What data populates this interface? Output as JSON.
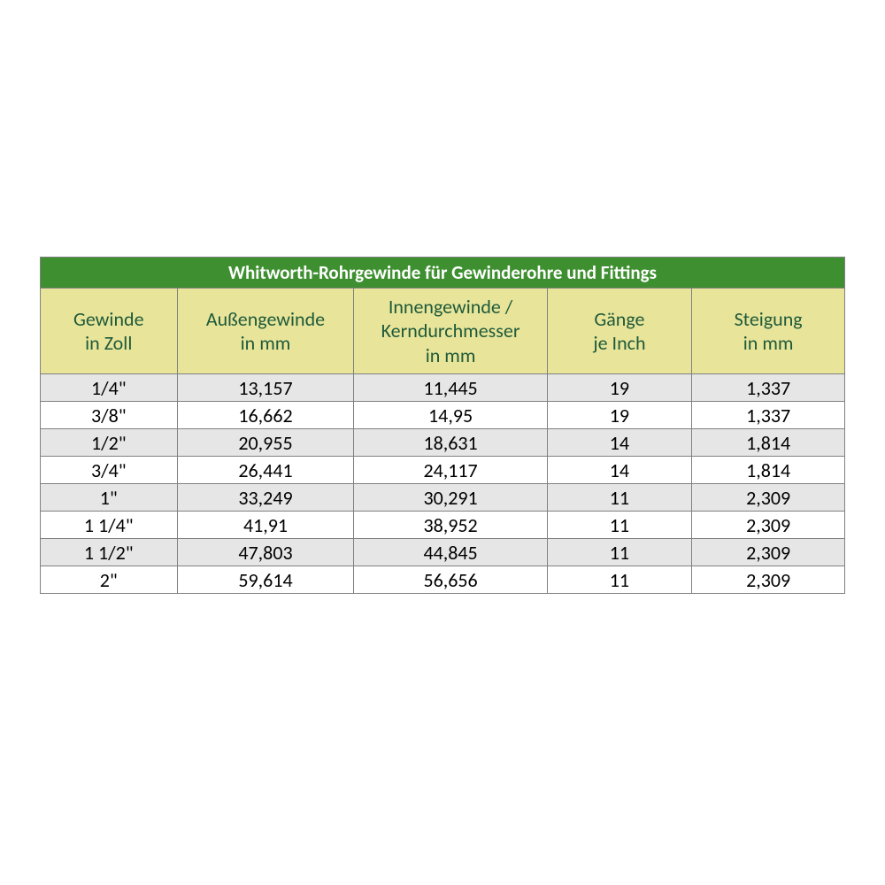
{
  "table": {
    "title": "Whitworth-Rohrgewinde für Gewinderohre und Fittings",
    "title_bg": "#3d8f2f",
    "title_color": "#ffffff",
    "header_bg": "#e8e59a",
    "header_color": "#1f5a3a",
    "row_odd_bg": "#e6e6e6",
    "row_even_bg": "#ffffff",
    "border_color": "#808080",
    "font_family": "Calibri, Arial, sans-serif",
    "title_fontsize": 21,
    "header_fontsize": 22,
    "data_fontsize": 22,
    "col_widths_pct": [
      17,
      22,
      24,
      18,
      19
    ],
    "columns": [
      {
        "line1": "Gewinde",
        "line2": "in Zoll"
      },
      {
        "line1": "Außengewinde",
        "line2": "in mm"
      },
      {
        "line1": "Innengewinde /",
        "line2": "Kerndurchmesser",
        "line3": "in mm"
      },
      {
        "line1": "Gänge",
        "line2": "je Inch"
      },
      {
        "line1": "Steigung",
        "line2": "in mm"
      }
    ],
    "rows": [
      [
        "1/4\"",
        "13,157",
        "11,445",
        "19",
        "1,337"
      ],
      [
        "3/8\"",
        "16,662",
        "14,95",
        "19",
        "1,337"
      ],
      [
        "1/2\"",
        "20,955",
        "18,631",
        "14",
        "1,814"
      ],
      [
        "3/4\"",
        "26,441",
        "24,117",
        "14",
        "1,814"
      ],
      [
        "1\"",
        "33,249",
        "30,291",
        "11",
        "2,309"
      ],
      [
        "1 1/4\"",
        "41,91",
        "38,952",
        "11",
        "2,309"
      ],
      [
        "1 1/2\"",
        "47,803",
        "44,845",
        "11",
        "2,309"
      ],
      [
        "2\"",
        "59,614",
        "56,656",
        "11",
        "2,309"
      ]
    ]
  }
}
